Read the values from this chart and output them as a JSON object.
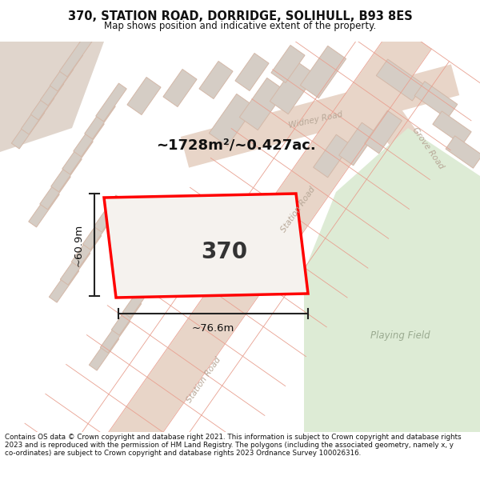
{
  "title": "370, STATION ROAD, DORRIDGE, SOLIHULL, B93 8ES",
  "subtitle": "Map shows position and indicative extent of the property.",
  "footer": "Contains OS data © Crown copyright and database right 2021. This information is subject to Crown copyright and database rights 2023 and is reproduced with the permission of HM Land Registry. The polygons (including the associated geometry, namely x, y co-ordinates) are subject to Crown copyright and database rights 2023 Ordnance Survey 100026316.",
  "area_label": "~1728m²/~0.427ac.",
  "width_label": "~76.6m",
  "height_label": "~60.9m",
  "plot_number": "370",
  "bg_color": "#ffffff",
  "map_bg": "#f7f3f0",
  "road_fill": "#e8d5c8",
  "road_line": "#d4b8a8",
  "bld_fill": "#d5cdc5",
  "bld_line": "#c8b8b0",
  "plot_fill": "#f5f2ee",
  "plot_line": "#ff0000",
  "green_fill": "#ddebd5",
  "green_line": "#c8d8c0",
  "tan_fill": "#e0d5cc",
  "road_label_color": "#b8a898",
  "dim_color": "#222222",
  "area_color": "#111111",
  "num_color": "#333333",
  "title_color": "#111111",
  "footer_color": "#111111"
}
